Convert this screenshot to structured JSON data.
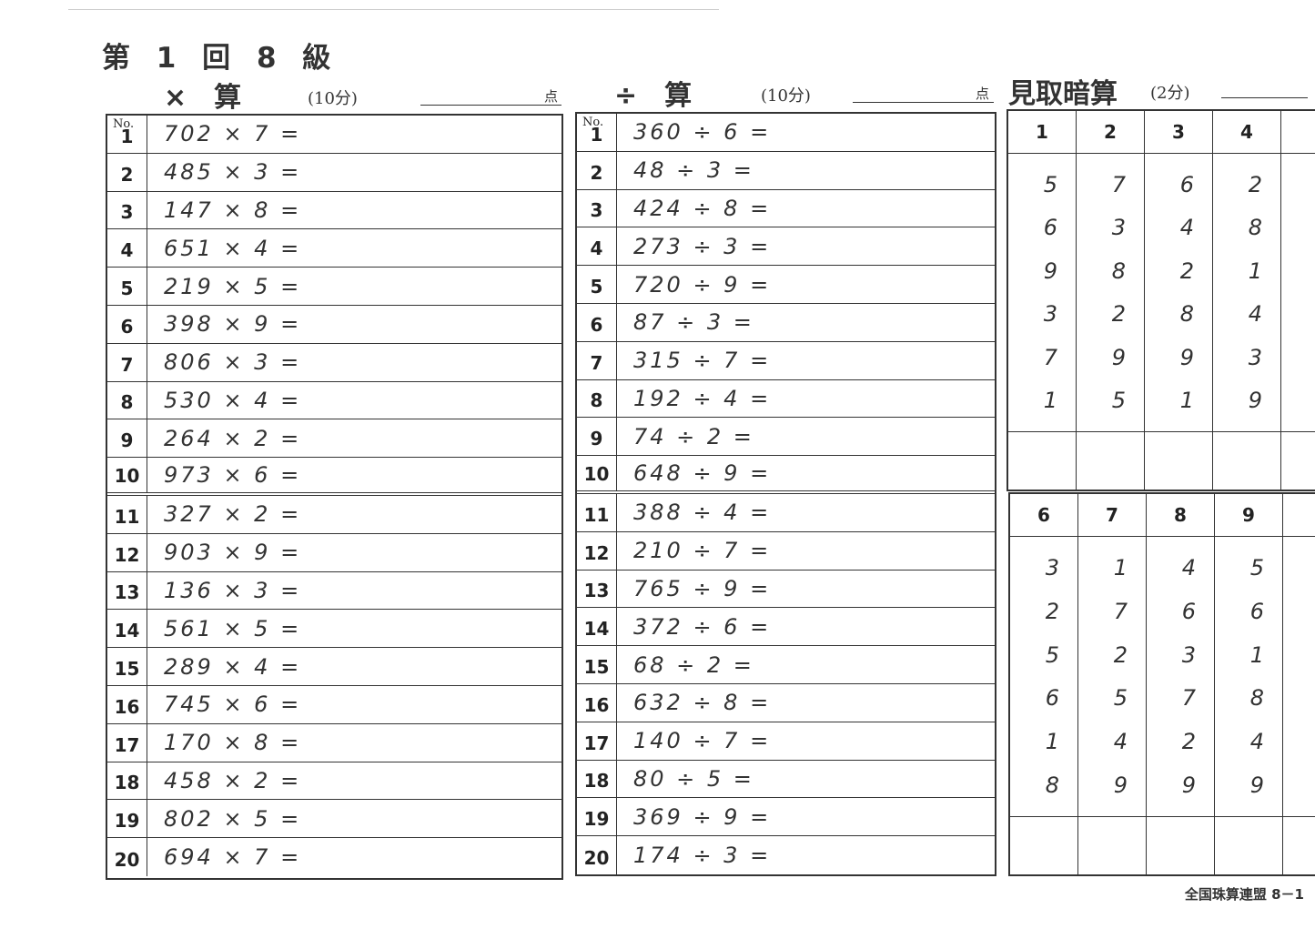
{
  "header": {
    "title": "第 1 回 8 級"
  },
  "multiplication": {
    "label": "×　算",
    "time": "(10分)",
    "points": "点",
    "problems": [
      "702 × 7 =",
      "485 × 3 =",
      "147 × 8 =",
      "651 × 4 =",
      "219 × 5 =",
      "398 × 9 =",
      "806 × 3 =",
      "530 × 4 =",
      "264 × 2 =",
      "973 × 6 =",
      "327 × 2 =",
      "903 × 9 =",
      "136 × 3 =",
      "561 × 5 =",
      "289 × 4 =",
      "745 × 6 =",
      "170 × 8 =",
      "458 × 2 =",
      "802 × 5 =",
      "694 × 7 ="
    ]
  },
  "division": {
    "label": "÷　算",
    "time": "(10分)",
    "points": "点",
    "problems": [
      "360 ÷ 6 =",
      "48 ÷ 3 =",
      "424 ÷ 8 =",
      "273 ÷ 3 =",
      "720 ÷ 9 =",
      "87 ÷ 3 =",
      "315 ÷ 7 =",
      "192 ÷ 4 =",
      "74 ÷ 2 =",
      "648 ÷ 9 =",
      "388 ÷ 4 =",
      "210 ÷ 7 =",
      "765 ÷ 9 =",
      "372 ÷ 6 =",
      "68 ÷ 2 =",
      "632 ÷ 8 =",
      "140 ÷ 7 =",
      "80 ÷ 5 =",
      "369 ÷ 9 =",
      "174 ÷ 3 ="
    ]
  },
  "mental": {
    "label": "見取暗算",
    "time": "(2分)",
    "blocks": [
      {
        "columns": [
          {
            "no": "1",
            "digits": [
              "5",
              "6",
              "9",
              "3",
              "7",
              "1"
            ]
          },
          {
            "no": "2",
            "digits": [
              "7",
              "3",
              "8",
              "2",
              "9",
              "5"
            ]
          },
          {
            "no": "3",
            "digits": [
              "6",
              "4",
              "2",
              "8",
              "9",
              "1"
            ]
          },
          {
            "no": "4",
            "digits": [
              "2",
              "8",
              "1",
              "4",
              "3",
              "9"
            ]
          }
        ]
      },
      {
        "columns": [
          {
            "no": "6",
            "digits": [
              "3",
              "2",
              "5",
              "6",
              "1",
              "8"
            ]
          },
          {
            "no": "7",
            "digits": [
              "1",
              "7",
              "2",
              "5",
              "4",
              "9"
            ]
          },
          {
            "no": "8",
            "digits": [
              "4",
              "6",
              "3",
              "7",
              "2",
              "9"
            ]
          },
          {
            "no": "9",
            "digits": [
              "5",
              "6",
              "1",
              "8",
              "4",
              "9"
            ]
          }
        ]
      }
    ]
  },
  "no_label": "No.",
  "footer": "全国珠算連盟 8－1"
}
